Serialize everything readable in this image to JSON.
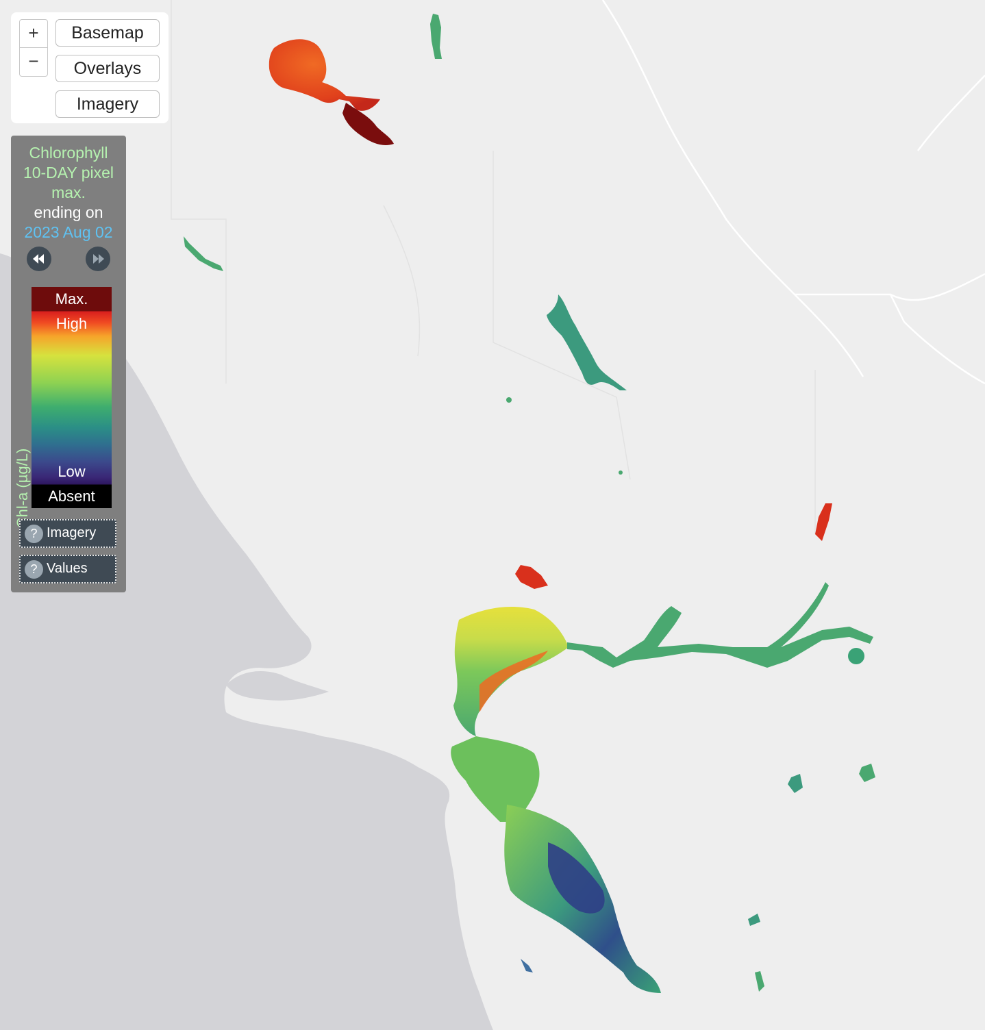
{
  "controls": {
    "zoom_in": "+",
    "zoom_out": "−",
    "basemap": "Basemap",
    "overlays": "Overlays",
    "imagery": "Imagery"
  },
  "legend": {
    "line1": "Chlorophyll",
    "line2": "10-DAY pixel",
    "line3": "max.",
    "line4": "ending on",
    "date": "2023 Aug 02",
    "axis_label": "Chl-a (µg/L)",
    "levels": {
      "max": "Max.",
      "high": "High",
      "low": "Low",
      "absent": "Absent"
    },
    "help_imagery": "Imagery",
    "help_values": "Values",
    "help_glyph": "?"
  },
  "icons": {
    "prev": "rewind-icon",
    "next": "fast-forward-icon",
    "help": "question-icon"
  },
  "colors": {
    "legend_title": "#b6f3b0",
    "legend_date": "#5fc2f2",
    "legend_bg": "#7f7f7f",
    "land": "#eeeeee",
    "ocean": "#d2d2d6"
  }
}
